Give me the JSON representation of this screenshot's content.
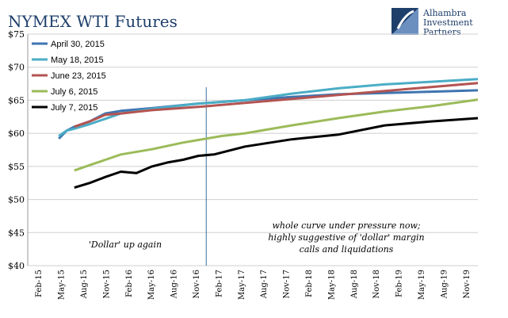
{
  "chart_data": {
    "type": "line",
    "title": "NYMEX WTI Futures",
    "ylim": [
      40,
      75
    ],
    "y_ticks": [
      40,
      45,
      50,
      55,
      60,
      65,
      70,
      75
    ],
    "y_tick_labels": [
      "$40",
      "$45",
      "$50",
      "$55",
      "$60",
      "$65",
      "$70",
      "$75"
    ],
    "x_tick_labels": [
      "Feb-15",
      "May-15",
      "Aug-15",
      "Nov-15",
      "Feb-16",
      "May-16",
      "Aug-16",
      "Nov-16",
      "Feb-17",
      "May-17",
      "Aug-17",
      "Nov-17",
      "Feb-18",
      "May-18",
      "Aug-18",
      "Nov-18",
      "Feb-19",
      "May-19",
      "Aug-19",
      "Nov-19"
    ],
    "x_range": [
      "2015-02",
      "2019-12"
    ],
    "grid": "horizontal",
    "legend_position": "top-left",
    "series": [
      {
        "name": "April 30, 2015",
        "color": "#3f74b0",
        "x": [
          "2015-06",
          "2015-07",
          "2015-08",
          "2015-10",
          "2015-12",
          "2016-02",
          "2016-06",
          "2016-12",
          "2017-06",
          "2017-12",
          "2018-06",
          "2018-12",
          "2019-06",
          "2019-12"
        ],
        "y": [
          59.2,
          60.4,
          61.0,
          61.8,
          63.0,
          63.4,
          63.8,
          64.5,
          65.0,
          65.5,
          65.9,
          66.1,
          66.3,
          66.5
        ]
      },
      {
        "name": "May 18, 2015",
        "color": "#4badc6",
        "x": [
          "2015-06",
          "2015-07",
          "2015-08",
          "2015-10",
          "2015-12",
          "2016-02",
          "2016-06",
          "2016-12",
          "2017-06",
          "2017-12",
          "2018-06",
          "2018-12",
          "2019-06",
          "2019-12"
        ],
        "y": [
          59.6,
          60.4,
          60.7,
          61.4,
          62.2,
          63.0,
          63.7,
          64.5,
          65.0,
          66.0,
          66.8,
          67.4,
          67.8,
          68.2
        ]
      },
      {
        "name": "June 23, 2015",
        "color": "#b35452",
        "x": [
          "2015-08",
          "2015-10",
          "2015-12",
          "2016-02",
          "2016-06",
          "2016-12",
          "2017-06",
          "2017-12",
          "2018-06",
          "2018-12",
          "2019-06",
          "2019-12"
        ],
        "y": [
          61.0,
          61.8,
          62.8,
          63.0,
          63.5,
          64.0,
          64.6,
          65.2,
          65.8,
          66.4,
          67.0,
          67.6
        ]
      },
      {
        "name": "July 6, 2015",
        "color": "#9bbb59",
        "x": [
          "2015-08",
          "2015-10",
          "2015-12",
          "2016-02",
          "2016-06",
          "2016-10",
          "2016-12",
          "2017-03",
          "2017-06",
          "2017-12",
          "2018-06",
          "2018-12",
          "2019-06",
          "2019-12"
        ],
        "y": [
          54.4,
          55.2,
          56.0,
          56.8,
          57.6,
          58.6,
          59.0,
          59.6,
          60.0,
          61.2,
          62.3,
          63.3,
          64.1,
          65.1
        ]
      },
      {
        "name": "July 7, 2015",
        "color": "#000000",
        "x": [
          "2015-08",
          "2015-10",
          "2015-12",
          "2016-02",
          "2016-04",
          "2016-06",
          "2016-08",
          "2016-10",
          "2016-12",
          "2017-02",
          "2017-04",
          "2017-06",
          "2017-12",
          "2018-06",
          "2018-12",
          "2019-06",
          "2019-12"
        ],
        "y": [
          51.8,
          52.5,
          53.4,
          54.2,
          54.0,
          55.0,
          55.6,
          56.0,
          56.6,
          56.8,
          57.4,
          58.0,
          59.1,
          59.8,
          61.2,
          61.8,
          62.3
        ]
      }
    ],
    "annotations": [
      {
        "id": "dollar-up",
        "lines": [
          "'Dollar' up again"
        ]
      },
      {
        "id": "whole-curve",
        "lines": [
          "whole curve under pressure now;",
          "highly suggestive of 'dollar' margin",
          "calls and liquidations"
        ]
      }
    ],
    "divider_date": "2017-01"
  },
  "logo": {
    "lines": [
      "Alhambra",
      "Investment",
      "Partners"
    ],
    "color": "#1f3f6b"
  }
}
